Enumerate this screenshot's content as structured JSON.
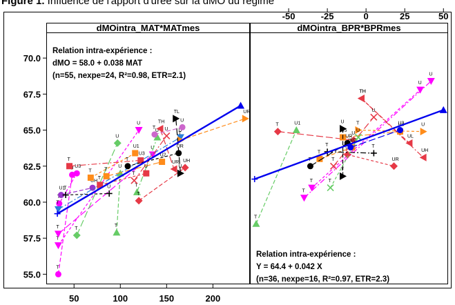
{
  "caption": {
    "figure_label": "Figure 1.",
    "text": " Influence de l'apport d'urée sur la dMO du régime"
  },
  "chart_data": [
    {
      "type": "scatter",
      "panel": "left",
      "title": "dMOintra_MAT*MATmes",
      "xlabel": "",
      "ylabel": "",
      "xlim": [
        20,
        240
      ],
      "ylim": [
        54.3,
        71.3
      ],
      "x_ticks": [
        50,
        100,
        150,
        200
      ],
      "y_ticks": [
        "55.0",
        "57.5",
        "60.0",
        "62.5",
        "65.0",
        "67.5",
        "70.0"
      ],
      "annotation": [
        "Relation intra-expérience :",
        "dMO = 58.0 + 0.038 MAT",
        "(n=55, nexpe=24, R²=0.98, ETR=2.1)"
      ],
      "fit_line": {
        "x": [
          32,
          230
        ],
        "y": [
          59.2,
          66.7
        ],
        "color": "#0000ee"
      },
      "series": [
        {
          "color": "#ff00ff",
          "marker": "circle",
          "labels": [
            "T",
            "U"
          ],
          "x": [
            33,
            48
          ],
          "y": [
            55.0,
            61.9
          ]
        },
        {
          "color": "#ff00ff",
          "marker": "circle",
          "labels": [
            "T",
            "U3"
          ],
          "x": [
            34,
            53
          ],
          "y": [
            59.9,
            62.0
          ]
        },
        {
          "color": "#ff00ff",
          "marker": "tri-down",
          "labels": [
            "T",
            "U"
          ],
          "x": [
            33,
            120
          ],
          "y": [
            57.0,
            65.0
          ]
        },
        {
          "color": "#ff00ff",
          "marker": "tri-down",
          "labels": [
            "T",
            "U"
          ],
          "x": [
            33,
            135
          ],
          "y": [
            57.8,
            63.3
          ]
        },
        {
          "color": "#9933cc",
          "marker": "circle",
          "labels": [
            "U1",
            "UH"
          ],
          "x": [
            36,
            70
          ],
          "y": [
            60.5,
            61.0
          ]
        },
        {
          "color": "#2b7fd9",
          "marker": "tri-down",
          "labels": [
            "T",
            "U"
          ],
          "x": [
            33,
            165
          ],
          "y": [
            59.5,
            64.5
          ]
        },
        {
          "color": "#000000",
          "marker": "plus",
          "labels": [
            "T",
            "U"
          ],
          "x": [
            41,
            88
          ],
          "y": [
            60.5,
            60.6
          ]
        },
        {
          "color": "#66cc66",
          "marker": "diamond",
          "labels": [
            "T",
            "U"
          ],
          "x": [
            53,
            97
          ],
          "y": [
            57.7,
            64.1
          ]
        },
        {
          "color": "#66cc66",
          "marker": "tri-up",
          "labels": [
            "T",
            "U"
          ],
          "x": [
            96,
            100
          ],
          "y": [
            57.9,
            62.0
          ]
        },
        {
          "color": "#66cc66",
          "marker": "tri-up",
          "labels": [
            "T",
            "U"
          ],
          "x": [
            118,
            140
          ],
          "y": [
            60.7,
            64.5
          ]
        },
        {
          "color": "#ff8c1a",
          "marker": "square",
          "labels": [
            "T",
            "U1"
          ],
          "x": [
            68,
            116
          ],
          "y": [
            61.7,
            63.4
          ]
        },
        {
          "color": "#ff8c1a",
          "marker": "square",
          "labels": [
            "T",
            "U2"
          ],
          "x": [
            85,
            145
          ],
          "y": [
            61.8,
            62.8
          ]
        },
        {
          "color": "#ff8c1a",
          "marker": "tri-right",
          "labels": [
            "T",
            "UR"
          ],
          "x": [
            165,
            235
          ],
          "y": [
            64.3,
            65.8
          ]
        },
        {
          "color": "#e63946",
          "marker": "square",
          "labels": [
            "T",
            "U3"
          ],
          "x": [
            45,
            122
          ],
          "y": [
            62.5,
            62.9
          ]
        },
        {
          "color": "#e63946",
          "marker": "square",
          "labels": [
            "T",
            "U"
          ],
          "x": [
            78,
            128
          ],
          "y": [
            61.2,
            62.0
          ]
        },
        {
          "color": "#e63946",
          "marker": "tri-left",
          "labels": [
            "TH",
            "UR"
          ],
          "x": [
            143,
            158
          ],
          "y": [
            65.1,
            62.3
          ]
        },
        {
          "color": "#e63946",
          "marker": "diamond",
          "labels": [
            "T",
            "UH"
          ],
          "x": [
            120,
            170
          ],
          "y": [
            60.1,
            62.4
          ]
        },
        {
          "color": "#e63946",
          "marker": "x",
          "labels": [
            "T",
            "U"
          ],
          "x": [
            115,
            150
          ],
          "y": [
            61.5,
            64.6
          ]
        },
        {
          "color": "#000000",
          "marker": "circle",
          "labels": [
            "T",
            "UR"
          ],
          "x": [
            108,
            163
          ],
          "y": [
            62.5,
            63.4
          ]
        },
        {
          "color": "#000000",
          "marker": "tri-right",
          "labels": [
            "TL",
            "U"
          ],
          "x": [
            160,
            165
          ],
          "y": [
            65.8,
            62.0
          ]
        },
        {
          "color": "#cc66cc",
          "marker": "circle",
          "labels": [
            "T",
            "U"
          ],
          "x": [
            137,
            167
          ],
          "y": [
            64.7,
            65.2
          ]
        }
      ]
    },
    {
      "type": "scatter",
      "panel": "right",
      "title": "dMOintra_BPR*BPRmes",
      "xlabel": "",
      "ylabel": "",
      "xlim": [
        -75,
        53
      ],
      "ylim": [
        54.3,
        71.3
      ],
      "x_ticks": [
        "-50",
        "-25",
        "0",
        "25",
        "50"
      ],
      "annotation": [
        "Relation intra-expérience :",
        "Y = 64.4 + 0.042 X",
        "(n=36, nexpe=16, R²=0.97, ETR=2.3)"
      ],
      "fit_line": {
        "x": [
          -72,
          50
        ],
        "y": [
          61.6,
          66.4
        ],
        "color": "#0000ee"
      },
      "series": [
        {
          "color": "#66cc66",
          "marker": "tri-up",
          "labels": [
            "T",
            "U1"
          ],
          "x": [
            -71,
            -45
          ],
          "y": [
            58.5,
            65.0
          ]
        },
        {
          "color": "#ff00ff",
          "marker": "tri-down",
          "labels": [
            "T",
            "U"
          ],
          "x": [
            -40,
            42
          ],
          "y": [
            60.3,
            68.4
          ]
        },
        {
          "color": "#ff00ff",
          "marker": "tri-down",
          "labels": [
            "T",
            "U"
          ],
          "x": [
            -35,
            35
          ],
          "y": [
            61.0,
            67.8
          ]
        },
        {
          "color": "#e63946",
          "marker": "diamond",
          "labels": [
            "T",
            "U"
          ],
          "x": [
            -57,
            -8
          ],
          "y": [
            64.9,
            64.3
          ]
        },
        {
          "color": "#e63946",
          "marker": "tri-left",
          "labels": [
            "TH",
            "UL"
          ],
          "x": [
            -3,
            28
          ],
          "y": [
            67.2,
            64.1
          ]
        },
        {
          "color": "#e63946",
          "marker": "tri-left",
          "labels": [
            "TH",
            "UH"
          ],
          "x": [
            -3,
            37
          ],
          "y": [
            67.2,
            63.1
          ]
        },
        {
          "color": "#e63946",
          "marker": "diamond",
          "labels": [
            "U",
            "UR"
          ],
          "x": [
            -12,
            18
          ],
          "y": [
            63.3,
            62.5
          ]
        },
        {
          "color": "#e63946",
          "marker": "x",
          "labels": [
            "T",
            "U"
          ],
          "x": [
            -21,
            5
          ],
          "y": [
            62.5,
            65.9
          ]
        },
        {
          "color": "#ff8c1a",
          "marker": "square",
          "labels": [
            "T",
            "U2"
          ],
          "x": [
            -30,
            -9
          ],
          "y": [
            63.0,
            63.8
          ]
        },
        {
          "color": "#ff8c1a",
          "marker": "square",
          "labels": [
            "U5",
            "U3"
          ],
          "x": [
            -15,
            22
          ],
          "y": [
            64.5,
            64.9
          ]
        },
        {
          "color": "#ff8c1a",
          "marker": "tri-right",
          "labels": [
            "T",
            "U"
          ],
          "x": [
            -5,
            37
          ],
          "y": [
            65.0,
            64.9
          ]
        },
        {
          "color": "#000000",
          "marker": "circle",
          "labels": [
            "T",
            "UR"
          ],
          "x": [
            -36,
            -12
          ],
          "y": [
            62.5,
            64.1
          ]
        },
        {
          "color": "#000000",
          "marker": "tri-right",
          "labels": [
            "T",
            "U"
          ],
          "x": [
            -15,
            -15
          ],
          "y": [
            61.8,
            65.1
          ]
        },
        {
          "color": "#000000",
          "marker": "plus",
          "labels": [
            "T",
            "T"
          ],
          "x": [
            -25,
            5
          ],
          "y": [
            63.5,
            63.4
          ]
        },
        {
          "color": "#66cc66",
          "marker": "x",
          "labels": [
            "T",
            "U"
          ],
          "x": [
            -23,
            -5
          ],
          "y": [
            61.0,
            64.5
          ]
        },
        {
          "color": "#0000ee",
          "marker": "circle",
          "labels": [
            "U",
            "U3"
          ],
          "x": [
            -10,
            22
          ],
          "y": [
            63.8,
            65.0
          ]
        }
      ]
    }
  ]
}
